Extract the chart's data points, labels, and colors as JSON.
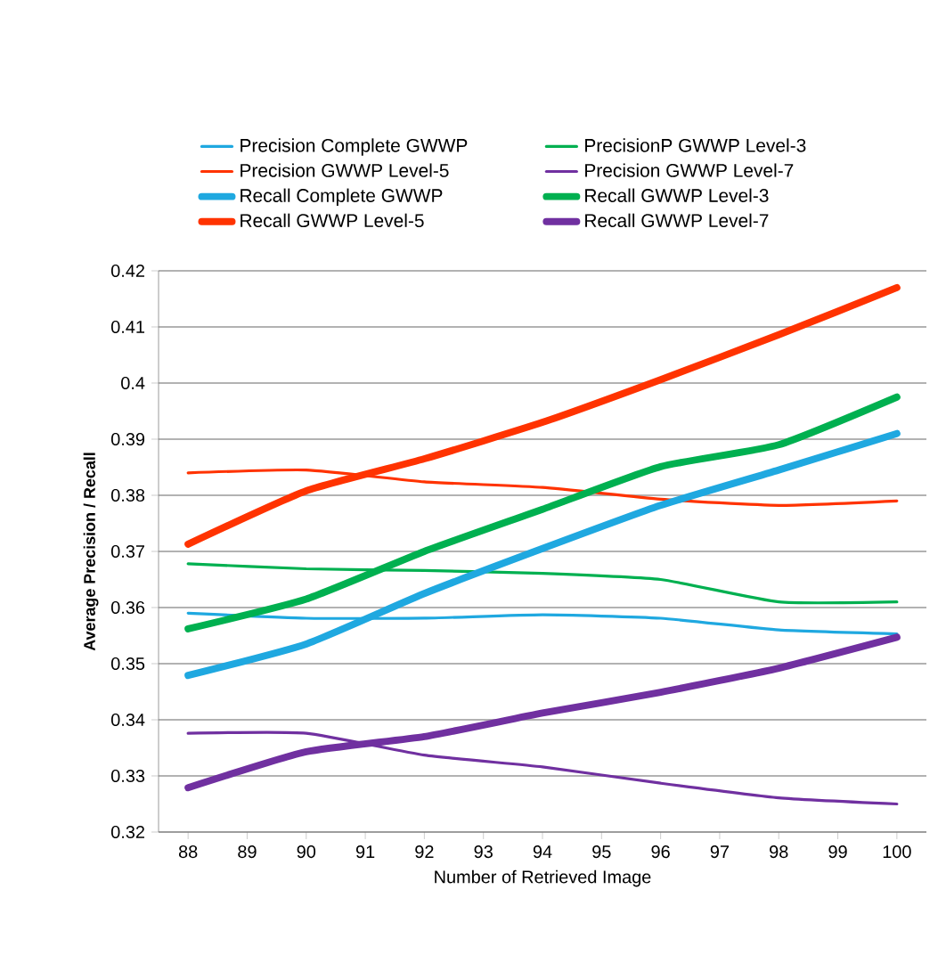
{
  "chart_data": {
    "type": "line",
    "xlabel": "Number of Retrieved Image",
    "ylabel": "Average Precision / Recall",
    "x": [
      88,
      90,
      92,
      94,
      96,
      98,
      100
    ],
    "xlim": [
      87.5,
      100.5
    ],
    "xticks": [
      88,
      89,
      90,
      91,
      92,
      93,
      94,
      95,
      96,
      97,
      98,
      99,
      100
    ],
    "ylim": [
      0.32,
      0.42
    ],
    "yticks": [
      0.32,
      0.33,
      0.34,
      0.35,
      0.36,
      0.37,
      0.38,
      0.39,
      0.4,
      0.41,
      0.42
    ],
    "grid": "y",
    "legend": "top",
    "marker": "none",
    "line_style": "solid",
    "series": [
      {
        "name": "Precision Complete GWWP",
        "color": "#1fa8e0",
        "values": [
          0.359,
          0.3581,
          0.3581,
          0.3587,
          0.3581,
          0.356,
          0.3553
        ]
      },
      {
        "name": "PrecisionP GWWP  Level-3",
        "color": "#00b050",
        "values": [
          0.3678,
          0.3669,
          0.3666,
          0.3661,
          0.365,
          0.361,
          0.361
        ]
      },
      {
        "name": "Precision GWWP  Level-5",
        "color": "#ff3300",
        "values": [
          0.384,
          0.3845,
          0.3824,
          0.3814,
          0.3793,
          0.3782,
          0.379
        ]
      },
      {
        "name": "Precision GWWP Level-7",
        "color": "#7030a0",
        "values": [
          0.3376,
          0.3376,
          0.3337,
          0.3316,
          0.3287,
          0.3261,
          0.325
        ]
      },
      {
        "name": "Recall Complete GWWP",
        "color": "#1fa8e0",
        "values": [
          0.3479,
          0.3535,
          0.3625,
          0.3705,
          0.3782,
          0.3845,
          0.391
        ]
      },
      {
        "name": "Recall GWWP Level-3",
        "color": "#00b050",
        "values": [
          0.3562,
          0.3615,
          0.37,
          0.3775,
          0.3851,
          0.389,
          0.3975
        ]
      },
      {
        "name": "Recall GWWP Level-5",
        "color": "#ff3300",
        "values": [
          0.3713,
          0.3808,
          0.3865,
          0.393,
          0.4006,
          0.4086,
          0.417
        ]
      },
      {
        "name": "Recall GWWP Level-7",
        "color": "#7030a0",
        "values": [
          0.3279,
          0.3343,
          0.337,
          0.3412,
          0.3449,
          0.3492,
          0.3547
        ]
      }
    ]
  }
}
